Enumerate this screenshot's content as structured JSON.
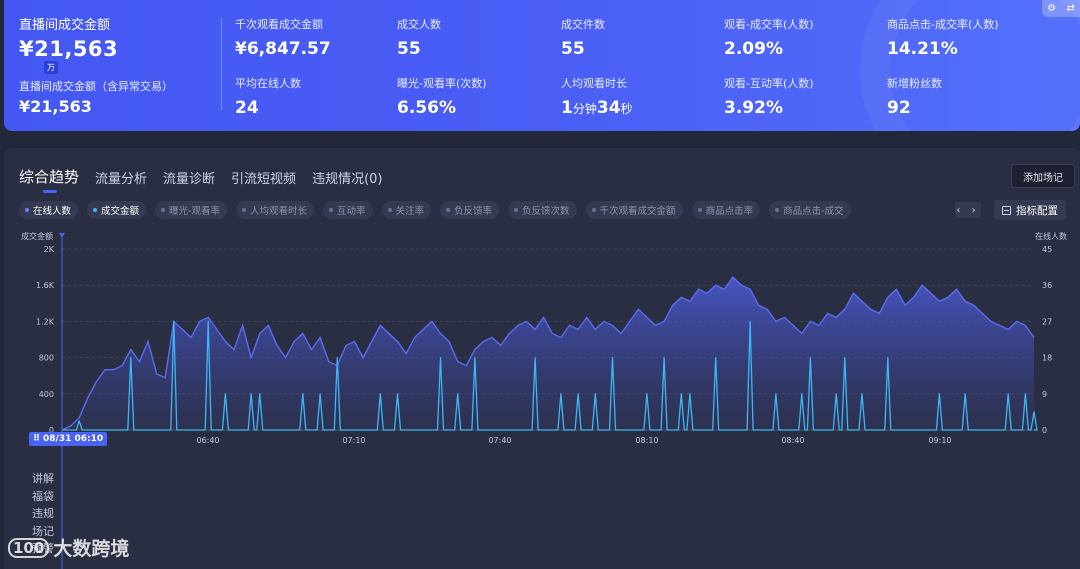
{
  "header": {
    "main_kpi": {
      "label": "直播间成交金额",
      "value": "¥21,563",
      "unit": "万"
    },
    "main_kpi2": {
      "label": "直播间成交金额（含异常交易）",
      "value": "¥21,563"
    },
    "kpis": [
      {
        "label": "千次观看成交金额",
        "value": "¥6,847.57"
      },
      {
        "label": "成交人数",
        "value": "55"
      },
      {
        "label": "成交件数",
        "value": "55"
      },
      {
        "label": "观看-成交率(人数)",
        "value": "2.09%"
      },
      {
        "label": "商品点击-成交率(人数)",
        "value": "14.21%"
      },
      {
        "label": "平均在线人数",
        "value": "24"
      },
      {
        "label": "曝光-观看率(次数)",
        "value": "6.56%"
      },
      {
        "label": "人均观看时长",
        "value_parts": [
          "1",
          "分钟",
          "34",
          "秒"
        ]
      },
      {
        "label": "观看-互动率(人数)",
        "value": "3.92%"
      },
      {
        "label": "新增粉丝数",
        "value": "92"
      }
    ],
    "corner_icons": [
      "gear-icon",
      "swap-icon"
    ]
  },
  "tabs": [
    {
      "label": "综合趋势",
      "active": true
    },
    {
      "label": "流量分析"
    },
    {
      "label": "流量诊断"
    },
    {
      "label": "引流短视频"
    },
    {
      "label": "违规情况(0)"
    }
  ],
  "add_note_label": "添加场记",
  "chips": [
    {
      "label": "在线人数",
      "on": true,
      "color": "#6a7ff7"
    },
    {
      "label": "成交金额",
      "on": true,
      "color": "#3fb6f4"
    },
    {
      "label": "曝光-观看率",
      "on": false
    },
    {
      "label": "人均观看时长",
      "on": false
    },
    {
      "label": "互动率",
      "on": false
    },
    {
      "label": "关注率",
      "on": false
    },
    {
      "label": "负反馈率",
      "on": false
    },
    {
      "label": "负反馈次数",
      "on": false
    },
    {
      "label": "千次观看成交金额",
      "on": false
    },
    {
      "label": "商品点击率",
      "on": false
    },
    {
      "label": "商品点击-成交",
      "on": false
    }
  ],
  "chip_nav_label": "‹ ›",
  "metric_config_label": "指标配置",
  "chart_data": {
    "type": "line",
    "left_axis_name": "成交金额",
    "right_axis_name": "在线人数",
    "left_ticks": [
      "0",
      "400",
      "800",
      "1.2K",
      "1.6K",
      "2K"
    ],
    "left_range": [
      0,
      2000
    ],
    "right_ticks": [
      "0",
      "9",
      "18",
      "27",
      "36",
      "45"
    ],
    "right_range": [
      0,
      45
    ],
    "x_ticks": [
      "06:40",
      "07:10",
      "07:40",
      "08:10",
      "08:40",
      "09:10"
    ],
    "grid": true,
    "series": [
      {
        "name": "在线人数",
        "axis": "right",
        "style": "area",
        "color": "#5a6cf0",
        "values": [
          0,
          1,
          3,
          8,
          12,
          15,
          15,
          16,
          20,
          17,
          22,
          14,
          13,
          27,
          25,
          23,
          27,
          28,
          25,
          22,
          20,
          26,
          18,
          24,
          26,
          21,
          18,
          22,
          24,
          20,
          23,
          17,
          16,
          21,
          22,
          18,
          22,
          26,
          24,
          22,
          19,
          23,
          25,
          27,
          24,
          22,
          17,
          16,
          20,
          22,
          23,
          21,
          24,
          26,
          27,
          25,
          28,
          24,
          23,
          26,
          25,
          28,
          25,
          27,
          26,
          24,
          27,
          30,
          28,
          26,
          27,
          31,
          33,
          32,
          35,
          34,
          36,
          35,
          38,
          36,
          35,
          31,
          30,
          27,
          28,
          26,
          24,
          27,
          26,
          29,
          28,
          30,
          34,
          32,
          30,
          29,
          33,
          35,
          31,
          33,
          36,
          34,
          32,
          33,
          35,
          32,
          31,
          29,
          27,
          26,
          25,
          27,
          26,
          23
        ]
      },
      {
        "name": "成交金额",
        "axis": "left",
        "style": "spike-line",
        "color": "#3fb6f4",
        "spikes": [
          {
            "i": 2,
            "v": 100
          },
          {
            "i": 8,
            "v": 800
          },
          {
            "i": 13,
            "v": 1200
          },
          {
            "i": 17,
            "v": 1200
          },
          {
            "i": 19,
            "v": 400
          },
          {
            "i": 22,
            "v": 400
          },
          {
            "i": 23,
            "v": 400
          },
          {
            "i": 28,
            "v": 400
          },
          {
            "i": 30,
            "v": 400
          },
          {
            "i": 32,
            "v": 800
          },
          {
            "i": 37,
            "v": 400
          },
          {
            "i": 39,
            "v": 400
          },
          {
            "i": 44,
            "v": 800
          },
          {
            "i": 46,
            "v": 400
          },
          {
            "i": 48,
            "v": 800
          },
          {
            "i": 55,
            "v": 800
          },
          {
            "i": 58,
            "v": 400
          },
          {
            "i": 60,
            "v": 400
          },
          {
            "i": 62,
            "v": 400
          },
          {
            "i": 64,
            "v": 800
          },
          {
            "i": 68,
            "v": 400
          },
          {
            "i": 70,
            "v": 800
          },
          {
            "i": 72,
            "v": 400
          },
          {
            "i": 73,
            "v": 400
          },
          {
            "i": 76,
            "v": 800
          },
          {
            "i": 80,
            "v": 1200
          },
          {
            "i": 83,
            "v": 400
          },
          {
            "i": 86,
            "v": 400
          },
          {
            "i": 87,
            "v": 800
          },
          {
            "i": 90,
            "v": 400
          },
          {
            "i": 91,
            "v": 800
          },
          {
            "i": 93,
            "v": 400
          },
          {
            "i": 96,
            "v": 800
          },
          {
            "i": 102,
            "v": 400
          },
          {
            "i": 105,
            "v": 400
          },
          {
            "i": 110,
            "v": 400
          },
          {
            "i": 112,
            "v": 400
          },
          {
            "i": 113,
            "v": 200
          }
        ]
      }
    ]
  },
  "cursor_time": "08/31 06:10",
  "row_labels": [
    "讲解",
    "福袋",
    "违规",
    "场记",
    "预警"
  ],
  "watermark": {
    "logo": "100",
    "text": "大数跨境"
  }
}
